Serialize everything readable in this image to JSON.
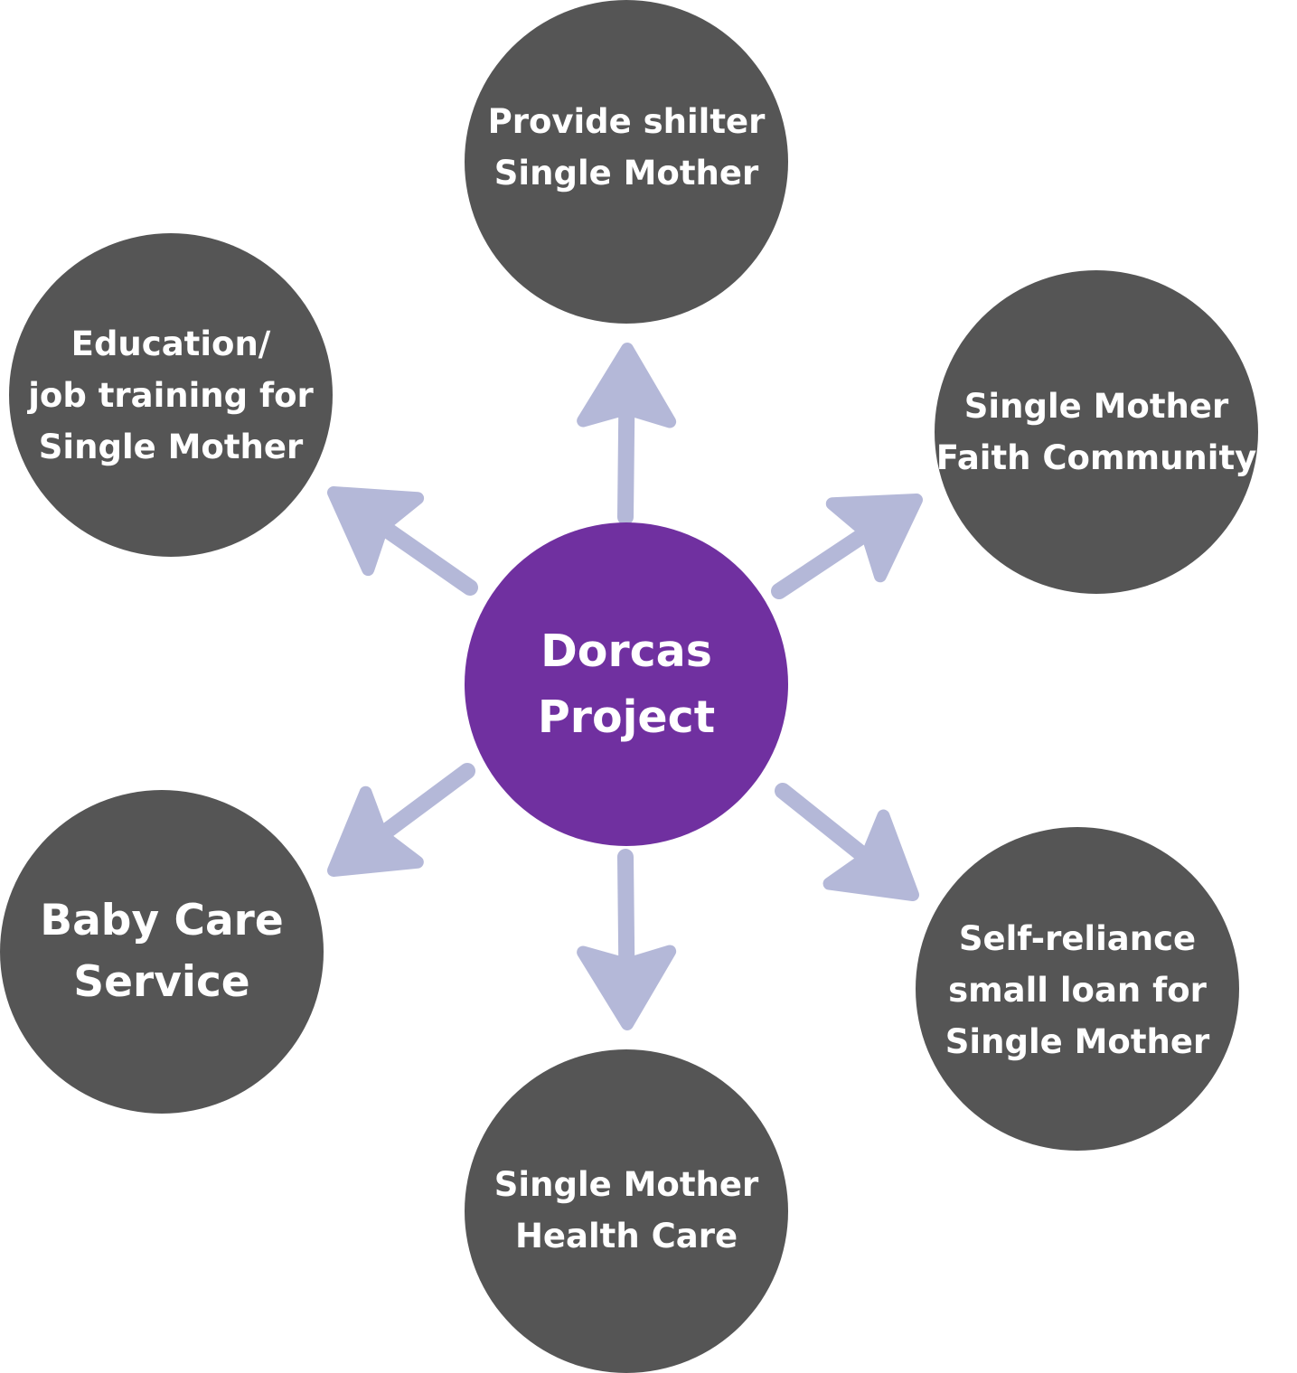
{
  "colors": {
    "background": "#ffffff",
    "center_fill": "#7030a0",
    "outer_fill": "#555555",
    "arrow": "#b4b8d8",
    "text": "#ffffff"
  },
  "center": {
    "label": "Dorcas\nProject"
  },
  "nodes": {
    "shelter": "Provide shilter\nSingle Mother",
    "faith": "Single Mother\nFaith Community",
    "loan": "Self-reliance\nsmall loan for\nSingle Mother",
    "health": "Single Mother\nHealth Care",
    "baby": "Baby Care\nService",
    "education": "Education/\njob training for\nSingle Mother"
  }
}
